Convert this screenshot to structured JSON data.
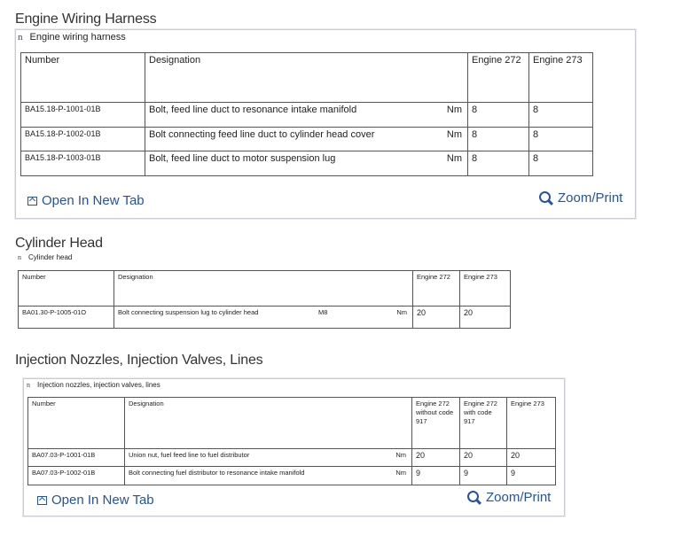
{
  "sections": [
    {
      "title": "Engine Wiring Harness",
      "subtitle": "Engine wiring harness",
      "bullet": "n",
      "headers": [
        "Number",
        "Designation",
        "Engine 272",
        "Engine 273"
      ],
      "rows": [
        {
          "number": "BA15.18-P-1001-01B",
          "designation": "Bolt, feed line duct to resonance intake manifold",
          "unit": "Nm",
          "values": [
            "8",
            "8"
          ]
        },
        {
          "number": "BA15.18-P-1002-01B",
          "designation": "Bolt connecting feed line duct to cylinder head cover",
          "unit": "Nm",
          "values": [
            "8",
            "8"
          ]
        },
        {
          "number": "BA15.18-P-1003-01B",
          "designation": "Bolt, feed line duct to motor suspension lug",
          "unit": "Nm",
          "values": [
            "8",
            "8"
          ]
        }
      ],
      "open_label": "Open In New Tab",
      "zoom_label": "Zoom/Print"
    },
    {
      "title": "Cylinder Head",
      "subtitle": "Cylinder head",
      "bullet": "n",
      "headers": [
        "Number",
        "Designation",
        "Engine 272",
        "Engine 273"
      ],
      "rows": [
        {
          "number": "BA01.30-P-1005-01O",
          "designation": "Bolt connecting suspension lug to cylinder head",
          "size": "M8",
          "unit": "Nm",
          "values": [
            "20",
            "20"
          ]
        }
      ]
    },
    {
      "title": "Injection Nozzles, Injection Valves, Lines",
      "subtitle": "Injection nozzles, injection valves, lines",
      "bullet": "n",
      "headers": [
        "Number",
        "Designation",
        "Engine 272 without code 917",
        "Engine 272 with code 917",
        "Engine 273"
      ],
      "rows": [
        {
          "number": "BA07.03-P-1001-01B",
          "designation": "Union nut, fuel feed line to fuel distributor",
          "unit": "Nm",
          "values": [
            "20",
            "20",
            "20"
          ]
        },
        {
          "number": "BA07.03-P-1002-01B",
          "designation": "Bolt connecting fuel distributor to resonance intake manifold",
          "unit": "Nm",
          "values": [
            "9",
            "9",
            "9"
          ]
        }
      ],
      "open_label": "Open In New Tab",
      "zoom_label": "Zoom/Print"
    }
  ],
  "colors": {
    "link": "#2452a4",
    "box_border": "#c9ccd6"
  },
  "icons": {
    "open": "open-new-tab-icon",
    "zoom": "zoom-magnifier-icon"
  }
}
